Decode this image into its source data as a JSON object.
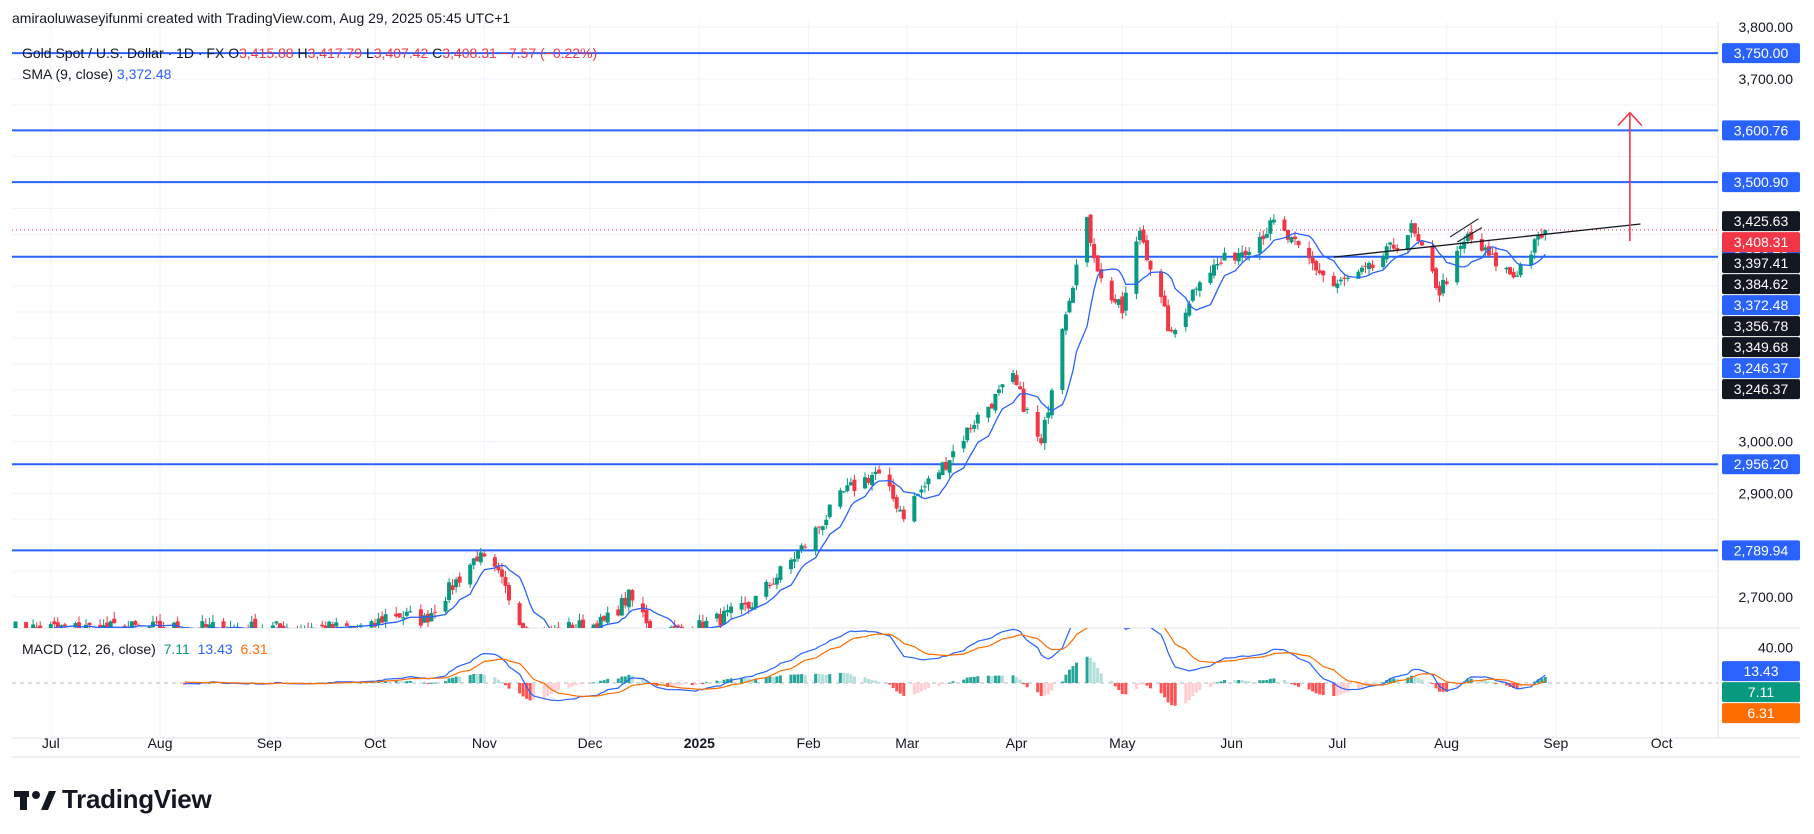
{
  "attribution": "amiraoluwaseyifunmi created with TradingView.com, Aug 29, 2025 05:45 UTC+1",
  "brand": {
    "name": "TradingView",
    "logo_icon": "tradingview-logo-icon"
  },
  "legend": {
    "title": "Gold Spot / U.S. Dollar · 1D · FX",
    "o_label": "O",
    "o": "3,415.88",
    "h_label": "H",
    "h": "3,417.79",
    "l_label": "L",
    "l": "3,407.42",
    "c_label": "C",
    "c": "3,408.31",
    "change": "−7.57 (−0.22%)",
    "sma_label": "SMA (9, close)",
    "sma_value": "3,372.48",
    "macd_label": "MACD (12, 26, close)",
    "macd": "7.11",
    "signal": "13.43",
    "hist": "6.31"
  },
  "colors": {
    "up": "#089981",
    "down": "#f23645",
    "level": "#2962ff",
    "sma": "#2962ff",
    "macd": "#2962ff",
    "signal": "#ff6d00",
    "arrow": "#f23645",
    "trend": "#131722",
    "hist_up_strong": "#26a69a",
    "hist_up_weak": "#b2dfdb",
    "hist_down_strong": "#ff5252",
    "hist_down_weak": "#ffcdd2"
  },
  "chart_data": {
    "type": "candlestick",
    "symbol": "Gold Spot / U.S. Dollar",
    "interval": "1D",
    "y_axis": {
      "ticks": [
        "3,800.00",
        "3,700.00",
        "3,000.00",
        "2,900.00",
        "2,700.00"
      ],
      "tick_values": [
        3800,
        3700,
        3000,
        2900,
        2700
      ],
      "range": [
        2640,
        3810
      ]
    },
    "x_axis": {
      "labels": [
        "Jul",
        "Aug",
        "Sep",
        "Oct",
        "Nov",
        "Dec",
        "2025",
        "Feb",
        "Mar",
        "Apr",
        "May",
        "Jun",
        "Jul",
        "Aug",
        "Sep",
        "Oct"
      ],
      "label_dates": [
        "2024-07-01",
        "2024-08-01",
        "2024-09-01",
        "2024-10-01",
        "2024-11-01",
        "2024-12-01",
        "2025-01-01",
        "2025-02-01",
        "2025-03-01",
        "2025-04-01",
        "2025-05-01",
        "2025-06-01",
        "2025-07-01",
        "2025-08-01",
        "2025-09-01",
        "2025-10-01"
      ],
      "range": [
        "2024-06-20",
        "2025-10-17"
      ]
    },
    "horizontal_levels": [
      {
        "value": 3750.0,
        "label": "3,750.00"
      },
      {
        "value": 3600.76,
        "label": "3,600.76"
      },
      {
        "value": 3500.9,
        "label": "3,500.90"
      },
      {
        "value": 3356.78,
        "label": "3,356.78"
      },
      {
        "value": 2956.2,
        "label": "2,956.20"
      },
      {
        "value": 2789.94,
        "label": "2,789.94"
      }
    ],
    "price_labels": [
      {
        "value": 3425.63,
        "label": "3,425.63",
        "style": "black"
      },
      {
        "value": 3408.31,
        "label": "3,408.31",
        "style": "red"
      },
      {
        "value": 3397.41,
        "label": "3,397.41",
        "style": "black"
      },
      {
        "value": 3384.62,
        "label": "3,384.62",
        "style": "black"
      },
      {
        "value": 3372.48,
        "label": "3,372.48",
        "style": "blue"
      },
      {
        "value": 3356.78,
        "label": "3,356.78",
        "style": "black"
      },
      {
        "value": 3349.68,
        "label": "3,349.68",
        "style": "black"
      },
      {
        "value": 3246.37,
        "label": "3,246.37",
        "style": "blue"
      },
      {
        "value": 3246.37,
        "label": "3,246.37",
        "style": "black"
      }
    ],
    "last_close": 3408.31,
    "trendline": {
      "start": {
        "date": "2025-06-30",
        "value": 3356
      },
      "end": {
        "date": "2025-09-25",
        "value": 3420
      }
    },
    "arrow": {
      "date": "2025-09-22",
      "from": 3387,
      "to": 3635
    },
    "channel_lines": [
      {
        "start": {
          "date": "2025-08-02",
          "value": 3395
        },
        "end": {
          "date": "2025-08-10",
          "value": 3430
        }
      },
      {
        "start": {
          "date": "2025-08-04",
          "value": 3385
        },
        "end": {
          "date": "2025-08-11",
          "value": 3413
        }
      }
    ],
    "price_anchors": [
      [
        "2024-06-20",
        2640
      ],
      [
        "2024-09-30",
        2640
      ],
      [
        "2024-10-05",
        2670
      ],
      [
        "2024-10-15",
        2655
      ],
      [
        "2024-10-30",
        2780
      ],
      [
        "2024-11-05",
        2740
      ],
      [
        "2024-11-14",
        2620
      ],
      [
        "2024-11-25",
        2640
      ],
      [
        "2024-12-05",
        2650
      ],
      [
        "2024-12-12",
        2700
      ],
      [
        "2024-12-20",
        2630
      ],
      [
        "2024-12-31",
        2640
      ],
      [
        "2025-01-15",
        2680
      ],
      [
        "2025-01-31",
        2800
      ],
      [
        "2025-02-11",
        2900
      ],
      [
        "2025-02-20",
        2940
      ],
      [
        "2025-02-28",
        2860
      ],
      [
        "2025-03-03",
        2890
      ],
      [
        "2025-03-12",
        2960
      ],
      [
        "2025-03-20",
        3040
      ],
      [
        "2025-03-31",
        3120
      ],
      [
        "2025-04-08",
        2990
      ],
      [
        "2025-04-14",
        3230
      ],
      [
        "2025-04-21",
        3420
      ],
      [
        "2025-04-25",
        3310
      ],
      [
        "2025-05-01",
        3250
      ],
      [
        "2025-05-06",
        3410
      ],
      [
        "2025-05-15",
        3200
      ],
      [
        "2025-05-23",
        3320
      ],
      [
        "2025-06-05",
        3375
      ],
      [
        "2025-06-13",
        3420
      ],
      [
        "2025-06-20",
        3370
      ],
      [
        "2025-06-30",
        3300
      ],
      [
        "2025-07-10",
        3330
      ],
      [
        "2025-07-22",
        3410
      ],
      [
        "2025-07-30",
        3290
      ],
      [
        "2025-08-07",
        3395
      ],
      [
        "2025-08-15",
        3345
      ],
      [
        "2025-08-20",
        3320
      ],
      [
        "2025-08-29",
        3408
      ]
    ],
    "sma": {
      "period": 9,
      "value": 3372.48
    },
    "macd": {
      "params": "12, 26, close",
      "macd": 7.11,
      "signal": 13.43,
      "histogram": 6.31,
      "y_ticks": [
        "40.00"
      ],
      "y_tick_values": [
        40
      ],
      "range": [
        -62,
        62
      ],
      "labels": [
        {
          "value": 13.43,
          "label": "13.43",
          "style": "blue"
        },
        {
          "value": 7.11,
          "label": "7.11",
          "style": "teal"
        },
        {
          "value": 6.31,
          "label": "6.31",
          "style": "orange"
        }
      ]
    }
  }
}
